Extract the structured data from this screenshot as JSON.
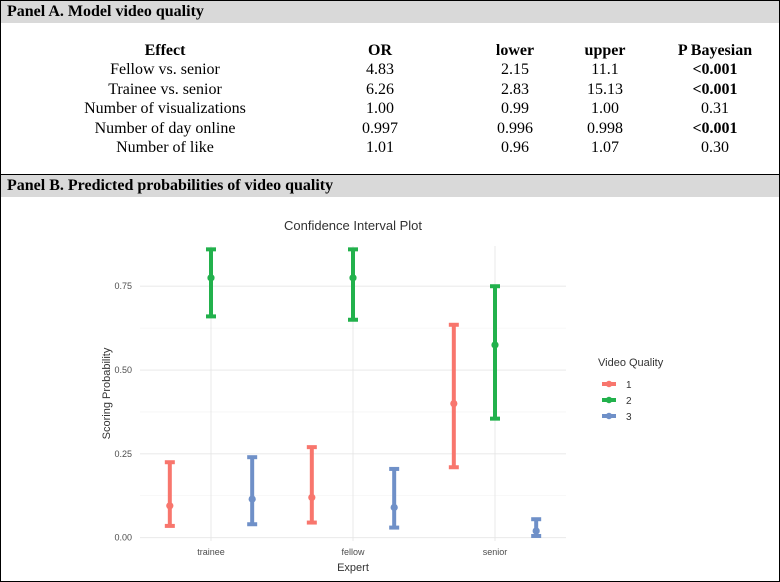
{
  "panel_a": {
    "header": "Panel A. Model video quality",
    "columns": [
      "Effect",
      "OR",
      "lower",
      "upper",
      "P Bayesian"
    ],
    "rows": [
      {
        "effect": "Fellow vs. senior",
        "or": "4.83",
        "lower": "2.15",
        "upper": "11.1",
        "p": "<0.001",
        "p_bold": true
      },
      {
        "effect": "Trainee vs. senior",
        "or": "6.26",
        "lower": "2.83",
        "upper": "15.13",
        "p": "<0.001",
        "p_bold": true
      },
      {
        "effect": "Number of visualizations",
        "or": "1.00",
        "lower": "0.99",
        "upper": "1.00",
        "p": "0.31",
        "p_bold": false
      },
      {
        "effect": "Number of day online",
        "or": "0.997",
        "lower": "0.996",
        "upper": "0.998",
        "p": "<0.001",
        "p_bold": true
      },
      {
        "effect": "Number of like",
        "or": "1.01",
        "lower": "0.96",
        "upper": "1.07",
        "p": "0.30",
        "p_bold": false
      }
    ]
  },
  "panel_b": {
    "header": "Panel B.  Predicted probabilities of video quality"
  },
  "chart_data": {
    "type": "errorbar",
    "title": "Confidence Interval Plot",
    "xlabel": "Expert",
    "ylabel": "Scoring Probability",
    "categories": [
      "trainee",
      "fellow",
      "senior"
    ],
    "yticks": [
      "0.00",
      "0.25",
      "0.50",
      "0.75"
    ],
    "ylim": [
      -0.01,
      0.87
    ],
    "grid": true,
    "legend_title": "Video Quality",
    "legend_position": "right",
    "series": [
      {
        "name": "1",
        "color": "#f8766d",
        "estimate": [
          0.095,
          0.12,
          0.4
        ],
        "lower": [
          0.035,
          0.045,
          0.21
        ],
        "upper": [
          0.225,
          0.27,
          0.635
        ]
      },
      {
        "name": "2",
        "color": "#22b14c",
        "estimate": [
          0.775,
          0.775,
          0.575
        ],
        "lower": [
          0.66,
          0.65,
          0.355
        ],
        "upper": [
          0.86,
          0.86,
          0.75
        ]
      },
      {
        "name": "3",
        "color": "#6f90c8",
        "estimate": [
          0.115,
          0.09,
          0.02
        ],
        "lower": [
          0.04,
          0.03,
          0.005
        ],
        "upper": [
          0.24,
          0.205,
          0.055
        ]
      }
    ]
  }
}
